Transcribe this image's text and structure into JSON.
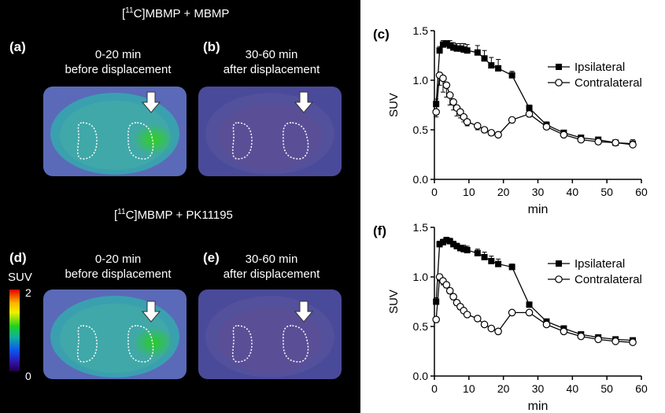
{
  "figure": {
    "top_header_prefix": "[",
    "top_header_sup": "11",
    "top_header_suffix": "C]MBMP + MBMP",
    "mid_header_prefix": "[",
    "mid_header_sup": "11",
    "mid_header_suffix": "C]MBMP + PK11195",
    "panels": {
      "a": {
        "label": "(a)",
        "line1": "0-20 min",
        "line2": "before displacement"
      },
      "b": {
        "label": "(b)",
        "line1": "30-60 min",
        "line2": "after displacement"
      },
      "d": {
        "label": "(d)",
        "line1": "0-20 min",
        "line2": "before displacement"
      },
      "e": {
        "label": "(e)",
        "line1": "30-60 min",
        "line2": "after displacement"
      }
    },
    "colorbar": {
      "title": "SUV",
      "max_label": "2",
      "min_label": "0"
    },
    "colors": {
      "scan_hot": "#20c020",
      "scan_warm": "#3aa0b0",
      "scan_cool": "#4a4a9a",
      "background": "#000000"
    }
  },
  "chart_data": [
    {
      "type": "line",
      "panel_label": "(c)",
      "xlabel": "min",
      "ylabel": "SUV",
      "xlim": [
        0,
        60
      ],
      "ylim": [
        0,
        1.5
      ],
      "xticks": [
        "0",
        "10",
        "20",
        "30",
        "40",
        "50",
        "60"
      ],
      "yticks": [
        "0.0",
        "0.5",
        "1.0",
        "1.5"
      ],
      "legend": "top-right",
      "series": [
        {
          "name": "Ipsilateral",
          "marker": "filled-square",
          "x": [
            0.5,
            1.5,
            2.5,
            3.5,
            4.5,
            5.5,
            6.5,
            7.5,
            8.5,
            9.5,
            12.5,
            14.5,
            16.5,
            18.5,
            22.5,
            27.5,
            32.5,
            37.5,
            42.5,
            47.5,
            52.5,
            57.5
          ],
          "y": [
            0.76,
            1.3,
            1.36,
            1.37,
            1.35,
            1.33,
            1.32,
            1.32,
            1.31,
            1.3,
            1.28,
            1.22,
            1.15,
            1.12,
            1.05,
            0.72,
            0.55,
            0.47,
            0.42,
            0.4,
            0.37,
            0.36
          ],
          "err": [
            0.05,
            0.04,
            0.04,
            0.03,
            0.05,
            0.05,
            0.05,
            0.05,
            0.06,
            0.06,
            0.07,
            0.08,
            0.08,
            0.09,
            0.04,
            0.03,
            0.03,
            0.02,
            0.02,
            0.02,
            0.02,
            0.04
          ]
        },
        {
          "name": "Contralateral",
          "marker": "open-circle",
          "x": [
            0.5,
            1.5,
            2.5,
            3.5,
            4.5,
            5.5,
            6.5,
            7.5,
            8.5,
            9.5,
            12.5,
            14.5,
            16.5,
            18.5,
            22.5,
            27.5,
            32.5,
            37.5,
            42.5,
            47.5,
            52.5,
            57.5
          ],
          "y": [
            0.68,
            1.05,
            1.02,
            0.95,
            0.85,
            0.78,
            0.72,
            0.68,
            0.63,
            0.58,
            0.54,
            0.5,
            0.47,
            0.45,
            0.6,
            0.66,
            0.53,
            0.45,
            0.4,
            0.38,
            0.37,
            0.35
          ],
          "err": [
            0.05,
            0.1,
            0.14,
            0.12,
            0.1,
            0.08,
            0.08,
            0.06,
            0.05,
            0.04,
            0.04,
            0.03,
            0.03,
            0.02,
            0.03,
            0.03,
            0.02,
            0.02,
            0.02,
            0.02,
            0.02,
            0.02
          ]
        }
      ]
    },
    {
      "type": "line",
      "panel_label": "(f)",
      "xlabel": "min",
      "ylabel": "SUV",
      "xlim": [
        0,
        60
      ],
      "ylim": [
        0,
        1.5
      ],
      "xticks": [
        "0",
        "10",
        "20",
        "30",
        "40",
        "50",
        "60"
      ],
      "yticks": [
        "0.0",
        "0.5",
        "1.0",
        "1.5"
      ],
      "legend": "top-right",
      "series": [
        {
          "name": "Ipsilateral",
          "marker": "filled-square",
          "x": [
            0.5,
            1.5,
            2.5,
            3.5,
            4.5,
            5.5,
            6.5,
            7.5,
            8.5,
            9.5,
            12.5,
            14.5,
            16.5,
            18.5,
            22.5,
            27.5,
            32.5,
            37.5,
            42.5,
            47.5,
            52.5,
            57.5
          ],
          "y": [
            0.75,
            1.33,
            1.35,
            1.37,
            1.36,
            1.33,
            1.31,
            1.29,
            1.28,
            1.27,
            1.24,
            1.2,
            1.16,
            1.13,
            1.1,
            0.72,
            0.55,
            0.48,
            0.42,
            0.39,
            0.37,
            0.36
          ],
          "err": [
            0.04,
            0.03,
            0.03,
            0.03,
            0.03,
            0.03,
            0.03,
            0.03,
            0.04,
            0.04,
            0.04,
            0.05,
            0.05,
            0.05,
            0.03,
            0.02,
            0.02,
            0.02,
            0.02,
            0.02,
            0.02,
            0.02
          ]
        },
        {
          "name": "Contralateral",
          "marker": "open-circle",
          "x": [
            0.5,
            1.5,
            2.5,
            3.5,
            4.5,
            5.5,
            6.5,
            7.5,
            8.5,
            9.5,
            12.5,
            14.5,
            16.5,
            18.5,
            22.5,
            27.5,
            32.5,
            37.5,
            42.5,
            47.5,
            52.5,
            57.5
          ],
          "y": [
            0.57,
            1.0,
            0.96,
            0.92,
            0.86,
            0.8,
            0.74,
            0.7,
            0.66,
            0.62,
            0.58,
            0.52,
            0.48,
            0.45,
            0.64,
            0.64,
            0.52,
            0.45,
            0.4,
            0.37,
            0.35,
            0.34
          ],
          "err": [
            0.03,
            0.04,
            0.04,
            0.03,
            0.03,
            0.03,
            0.03,
            0.03,
            0.02,
            0.02,
            0.02,
            0.02,
            0.02,
            0.02,
            0.02,
            0.02,
            0.02,
            0.02,
            0.02,
            0.02,
            0.02,
            0.02
          ]
        }
      ]
    }
  ]
}
